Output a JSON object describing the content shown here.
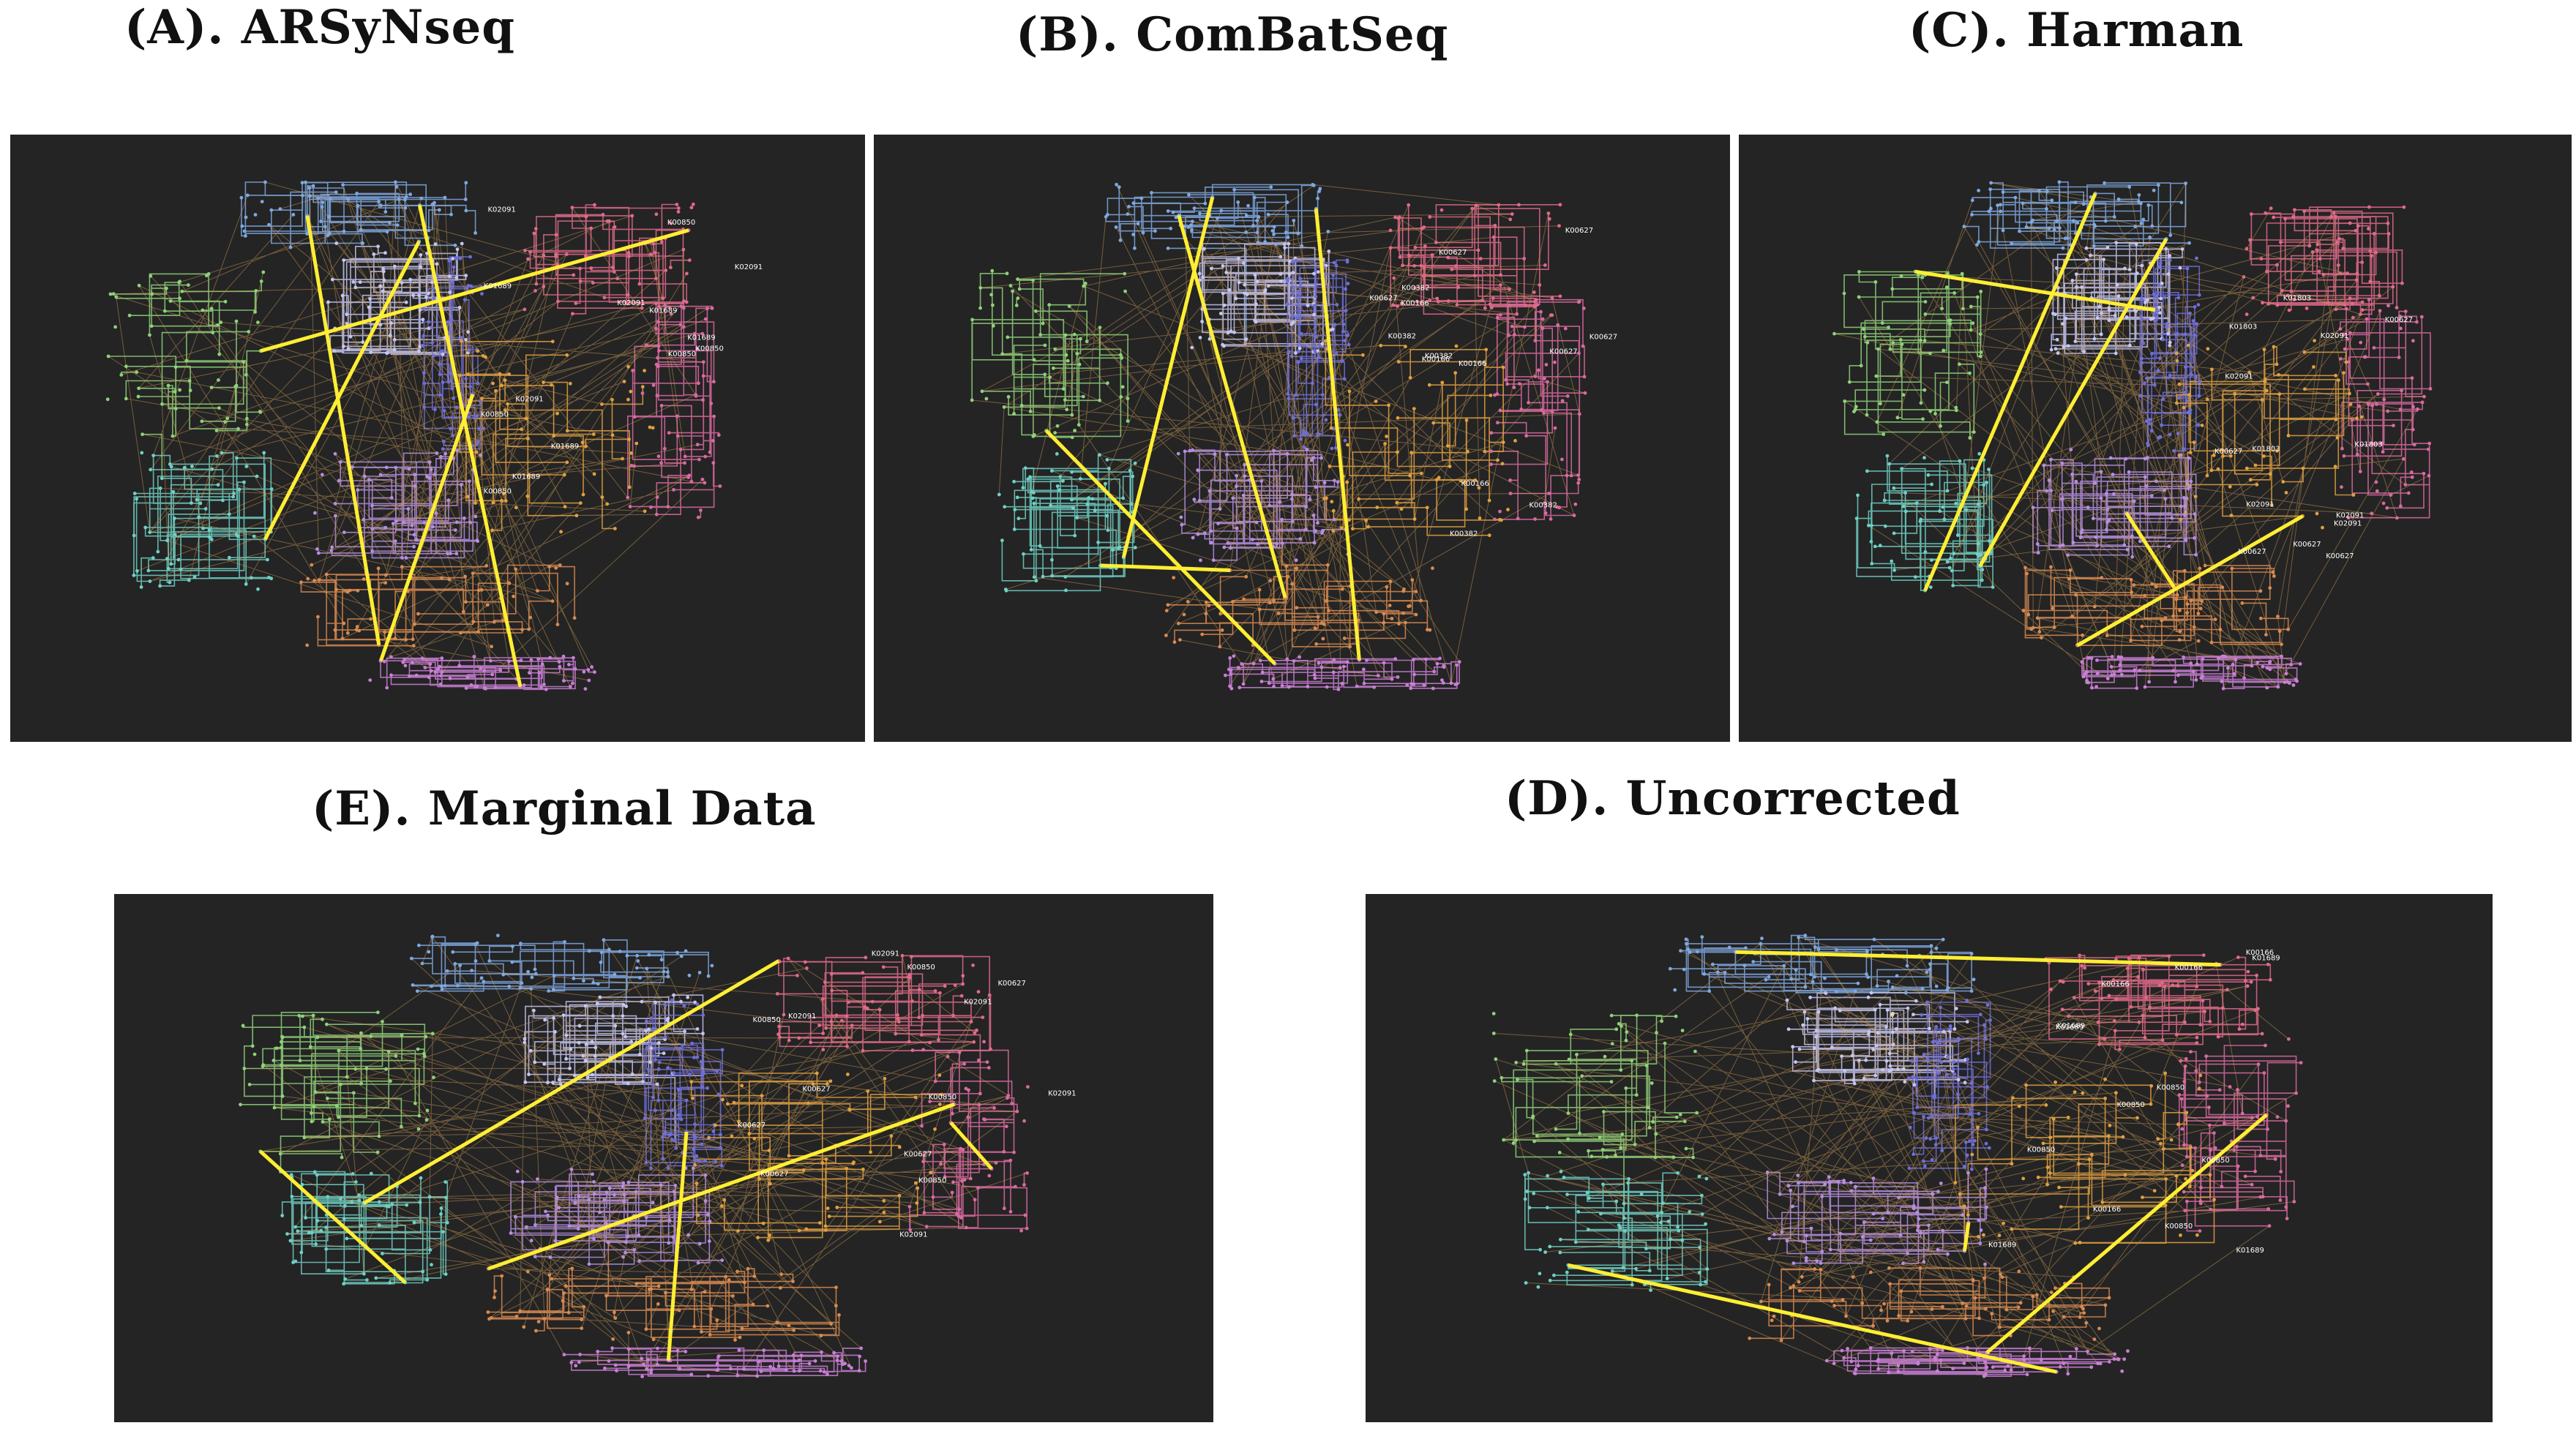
{
  "panels": [
    {
      "id": "A",
      "title": "(A). ARSyNseq",
      "labels": [
        "K00850",
        "K01689",
        "K02091"
      ],
      "highlight": "#ffee33"
    },
    {
      "id": "B",
      "title": "(B). ComBatSeq",
      "labels": [
        "K00627",
        "K00382",
        "K00166"
      ],
      "highlight": "#ffee33"
    },
    {
      "id": "C",
      "title": "(C). Harman",
      "labels": [
        "K00627",
        "K02091",
        "K01803"
      ],
      "highlight": "#ffee33"
    },
    {
      "id": "E",
      "title": "(E). Marginal Data",
      "labels": [
        "K00627",
        "K02091",
        "K00850"
      ],
      "highlight": "#ffee33"
    },
    {
      "id": "D",
      "title": "(D). Uncorrected",
      "labels": [
        "K00850",
        "K01689",
        "K00166"
      ],
      "highlight": "#ffee33"
    }
  ],
  "palette": {
    "background": "#242424",
    "highlight": "#ffee33",
    "module_colors": [
      "#7fa8e0",
      "#c5c6f0",
      "#6f6fd6",
      "#e06a8a",
      "#d96aa0",
      "#8fd17a",
      "#6fd0c4",
      "#e0a040",
      "#d98a50",
      "#b58fe0",
      "#c97fd6"
    ]
  }
}
